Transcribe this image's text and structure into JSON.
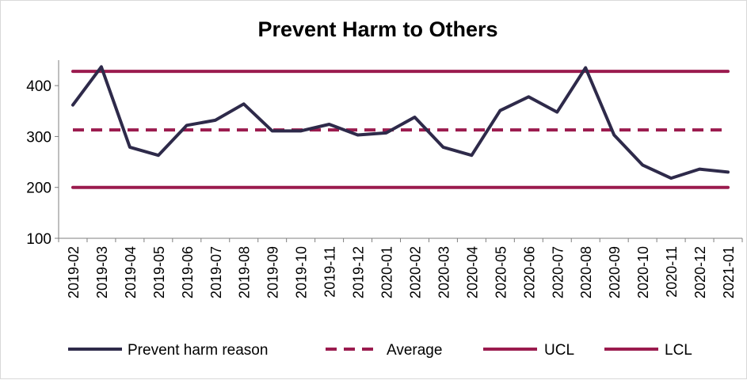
{
  "chart_data": {
    "type": "line",
    "title": "Prevent Harm to Others",
    "xlabel": "",
    "ylabel": "",
    "ylim": [
      100,
      450
    ],
    "yticks": [
      100,
      200,
      300,
      400
    ],
    "grid": false,
    "legend_position": "bottom",
    "categories": [
      "2019-02",
      "2019-03",
      "2019-04",
      "2019-05",
      "2019-06",
      "2019-07",
      "2019-08",
      "2019-09",
      "2019-10",
      "2019-11",
      "2019-12",
      "2020-01",
      "2020-02",
      "2020-03",
      "2020-04",
      "2020-05",
      "2020-06",
      "2020-07",
      "2020-08",
      "2020-09",
      "2020-10",
      "2020-11",
      "2020-12",
      "2021-01"
    ],
    "series": [
      {
        "name": "Prevent harm reason",
        "style": "solid",
        "color": "#2e2a4a",
        "values": [
          362,
          437,
          279,
          263,
          322,
          332,
          364,
          311,
          311,
          324,
          303,
          307,
          338,
          279,
          263,
          351,
          378,
          348,
          435,
          303,
          244,
          218,
          236,
          230
        ]
      },
      {
        "name": "Average",
        "style": "dashed",
        "color": "#9b1b4e",
        "values": [
          313,
          313,
          313,
          313,
          313,
          313,
          313,
          313,
          313,
          313,
          313,
          313,
          313,
          313,
          313,
          313,
          313,
          313,
          313,
          313,
          313,
          313,
          313,
          313
        ]
      },
      {
        "name": "UCL",
        "style": "solid",
        "color": "#9b1b4e",
        "values": [
          428,
          428,
          428,
          428,
          428,
          428,
          428,
          428,
          428,
          428,
          428,
          428,
          428,
          428,
          428,
          428,
          428,
          428,
          428,
          428,
          428,
          428,
          428,
          428
        ]
      },
      {
        "name": "LCL",
        "style": "solid",
        "color": "#9b1b4e",
        "values": [
          200,
          200,
          200,
          200,
          200,
          200,
          200,
          200,
          200,
          200,
          200,
          200,
          200,
          200,
          200,
          200,
          200,
          200,
          200,
          200,
          200,
          200,
          200,
          200
        ]
      }
    ]
  }
}
